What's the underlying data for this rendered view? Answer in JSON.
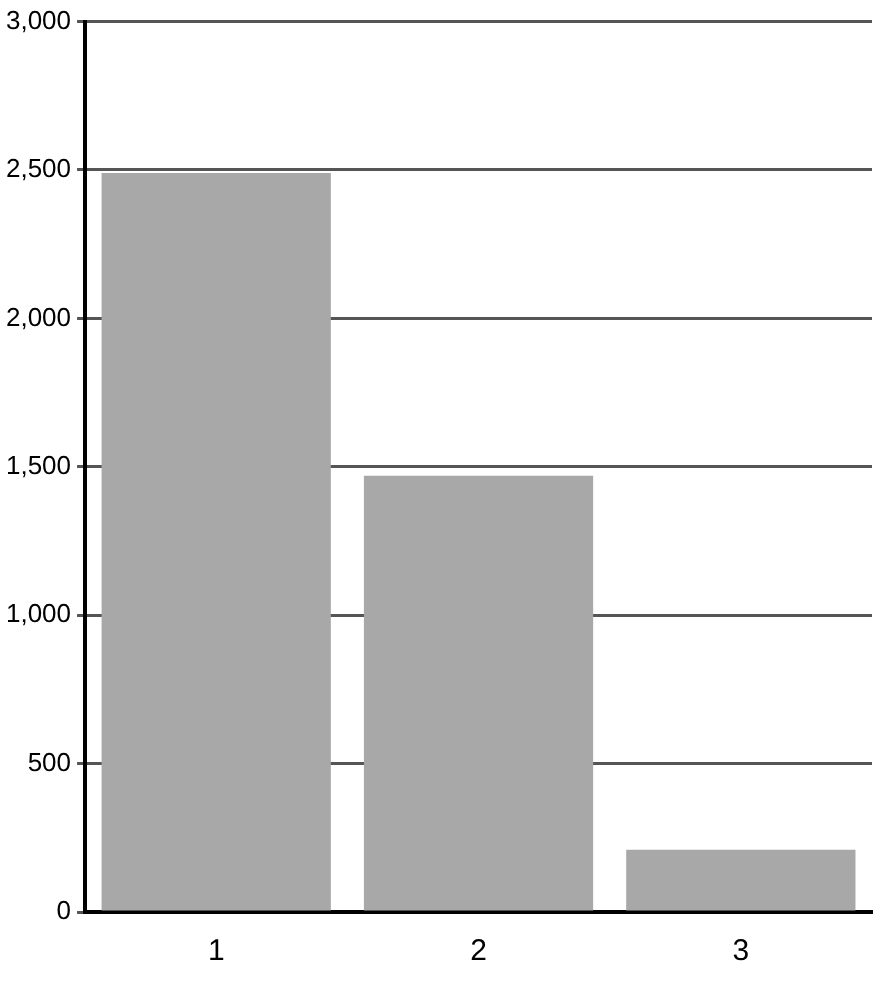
{
  "chart_data": {
    "type": "bar",
    "categories": [
      "1",
      "2",
      "3"
    ],
    "values": [
      2490,
      1470,
      210
    ],
    "color": "#a8a8a8",
    "ylim": [
      0,
      3000
    ],
    "yticks": [
      {
        "value": 0,
        "label": "0"
      },
      {
        "value": 500,
        "label": "500"
      },
      {
        "value": 1000,
        "label": "1,000"
      },
      {
        "value": 1500,
        "label": "1,500"
      },
      {
        "value": 2000,
        "label": "2,000"
      },
      {
        "value": 2500,
        "label": "2,500"
      },
      {
        "value": 3000,
        "label": "3,000"
      }
    ],
    "grid": "y",
    "legend": false
  }
}
